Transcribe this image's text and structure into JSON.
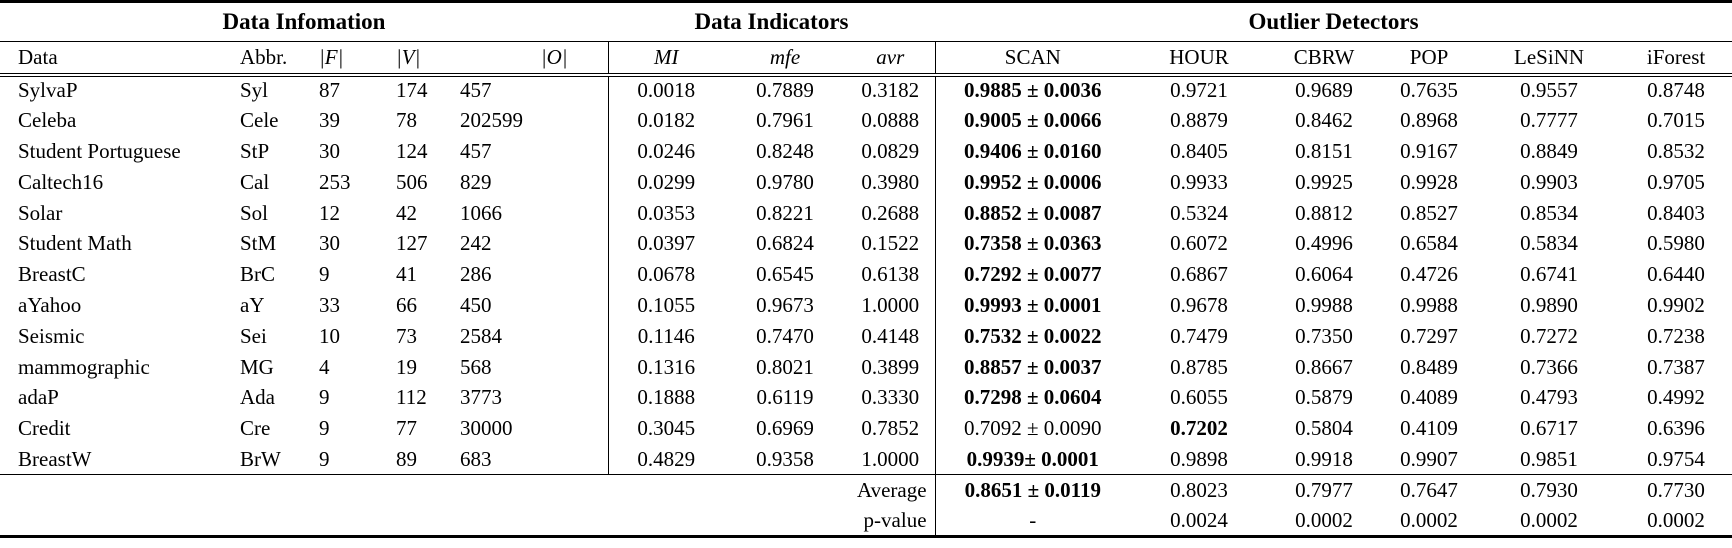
{
  "page": {
    "background": "#ffffff",
    "text_color": "#000000",
    "rule_color": "#000000"
  },
  "table": {
    "groups": [
      {
        "label": "Data Infomation",
        "span": 5
      },
      {
        "label": "Data Indicators",
        "span": 3
      },
      {
        "label": "Outlier Detectors",
        "span": 6
      }
    ],
    "columns": [
      {
        "key": "data",
        "label": "Data"
      },
      {
        "key": "abbr",
        "label": "Abbr."
      },
      {
        "key": "features",
        "label": "|F|"
      },
      {
        "key": "variables",
        "label": "|V|"
      },
      {
        "key": "objects",
        "label": "|O|"
      },
      {
        "key": "mi",
        "label": "MI"
      },
      {
        "key": "mfe",
        "label": "mfe"
      },
      {
        "key": "avr",
        "label": "avr"
      },
      {
        "key": "scan",
        "label": "SCAN"
      },
      {
        "key": "hour",
        "label": "HOUR"
      },
      {
        "key": "cbrw",
        "label": "CBRW"
      },
      {
        "key": "pop",
        "label": "POP"
      },
      {
        "key": "lesinn",
        "label": "LeSiNN"
      },
      {
        "key": "iforest",
        "label": "iForest"
      }
    ],
    "rows": [
      {
        "cells": [
          "SylvaP",
          "Syl",
          "87",
          "174",
          "457",
          "0.0018",
          "0.7889",
          "0.3182",
          "0.9885 ± 0.0036",
          "0.9721",
          "0.9689",
          "0.7635",
          "0.9557",
          "0.8748"
        ],
        "bold": [
          8
        ]
      },
      {
        "cells": [
          "Celeba",
          "Cele",
          "39",
          "78",
          "202599",
          "0.0182",
          "0.7961",
          "0.0888",
          "0.9005 ± 0.0066",
          "0.8879",
          "0.8462",
          "0.8968",
          "0.7777",
          "0.7015"
        ],
        "bold": [
          8
        ]
      },
      {
        "cells": [
          "Student Portuguese",
          "StP",
          "30",
          "124",
          "457",
          "0.0246",
          "0.8248",
          "0.0829",
          "0.9406 ± 0.0160",
          "0.8405",
          "0.8151",
          "0.9167",
          "0.8849",
          "0.8532"
        ],
        "bold": [
          8
        ]
      },
      {
        "cells": [
          "Caltech16",
          "Cal",
          "253",
          "506",
          "829",
          "0.0299",
          "0.9780",
          "0.3980",
          "0.9952 ± 0.0006",
          "0.9933",
          "0.9925",
          "0.9928",
          "0.9903",
          "0.9705"
        ],
        "bold": [
          8
        ]
      },
      {
        "cells": [
          "Solar",
          "Sol",
          "12",
          "42",
          "1066",
          "0.0353",
          "0.8221",
          "0.2688",
          "0.8852 ± 0.0087",
          "0.5324",
          "0.8812",
          "0.8527",
          "0.8534",
          "0.8403"
        ],
        "bold": [
          8
        ]
      },
      {
        "cells": [
          "Student Math",
          "StM",
          "30",
          "127",
          "242",
          "0.0397",
          "0.6824",
          "0.1522",
          "0.7358 ± 0.0363",
          "0.6072",
          "0.4996",
          "0.6584",
          "0.5834",
          "0.5980"
        ],
        "bold": [
          8
        ]
      },
      {
        "cells": [
          "BreastC",
          "BrC",
          "9",
          "41",
          "286",
          "0.0678",
          "0.6545",
          "0.6138",
          "0.7292 ± 0.0077",
          "0.6867",
          "0.6064",
          "0.4726",
          "0.6741",
          "0.6440"
        ],
        "bold": [
          8
        ]
      },
      {
        "cells": [
          "aYahoo",
          "aY",
          "33",
          "66",
          "450",
          "0.1055",
          "0.9673",
          "1.0000",
          "0.9993 ± 0.0001",
          "0.9678",
          "0.9988",
          "0.9988",
          "0.9890",
          "0.9902"
        ],
        "bold": [
          8
        ]
      },
      {
        "cells": [
          "Seismic",
          "Sei",
          "10",
          "73",
          "2584",
          "0.1146",
          "0.7470",
          "0.4148",
          "0.7532 ± 0.0022",
          "0.7479",
          "0.7350",
          "0.7297",
          "0.7272",
          "0.7238"
        ],
        "bold": [
          8
        ]
      },
      {
        "cells": [
          "mammographic",
          "MG",
          "4",
          "19",
          "568",
          "0.1316",
          "0.8021",
          "0.3899",
          "0.8857 ± 0.0037",
          "0.8785",
          "0.8667",
          "0.8489",
          "0.7366",
          "0.7387"
        ],
        "bold": [
          8
        ]
      },
      {
        "cells": [
          "adaP",
          "Ada",
          "9",
          "112",
          "3773",
          "0.1888",
          "0.6119",
          "0.3330",
          "0.7298 ± 0.0604",
          "0.6055",
          "0.5879",
          "0.4089",
          "0.4793",
          "0.4992"
        ],
        "bold": [
          8
        ]
      },
      {
        "cells": [
          "Credit",
          "Cre",
          "9",
          "77",
          "30000",
          "0.3045",
          "0.6969",
          "0.7852",
          "0.7092 ± 0.0090",
          "0.7202",
          "0.5804",
          "0.4109",
          "0.6717",
          "0.6396"
        ],
        "bold": [
          9
        ]
      },
      {
        "cells": [
          "BreastW",
          "BrW",
          "9",
          "89",
          "683",
          "0.4829",
          "0.9358",
          "1.0000",
          "0.9939± 0.0001",
          "0.9898",
          "0.9918",
          "0.9907",
          "0.9851",
          "0.9754"
        ],
        "bold": [
          8
        ]
      }
    ],
    "footer_rows": [
      {
        "label": "Average",
        "values": [
          "0.8651 ± 0.0119",
          "0.8023",
          "0.7977",
          "0.7647",
          "0.7930",
          "0.7730"
        ],
        "bold": [
          0
        ]
      },
      {
        "label": "p-value",
        "values": [
          "-",
          "0.0024",
          "0.0002",
          "0.0002",
          "0.0002",
          "0.0002"
        ],
        "bold": []
      }
    ]
  }
}
